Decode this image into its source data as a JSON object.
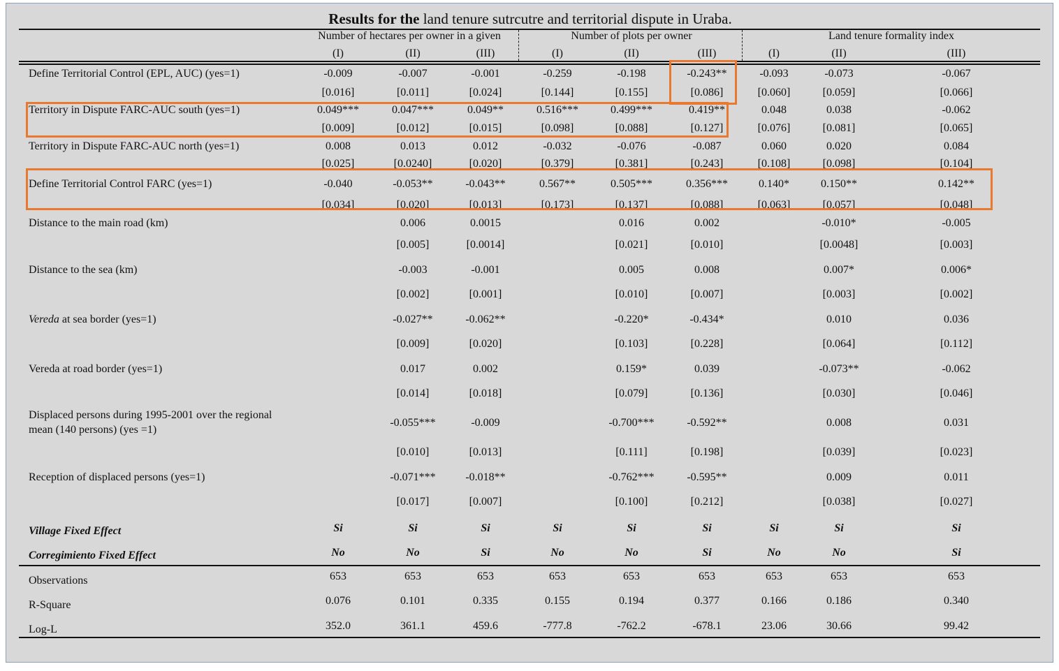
{
  "title": {
    "bold": "Results for the",
    "rest": " land tenure sutrcutre and territorial dispute in Uraba."
  },
  "groups": [
    {
      "label": "Number of hectares per owner in a given"
    },
    {
      "label": "Number of plots per owner"
    },
    {
      "label": "Land tenure formality index"
    }
  ],
  "columns": [
    "(I)",
    "(II)",
    "(III)",
    "(I)",
    "(II)",
    "(III)",
    "(I)",
    "(II)",
    "(III)"
  ],
  "rows": [
    {
      "label": "Define Territorial Control (EPL, AUC) (yes=1)",
      "coef": [
        "-0.009",
        "-0.007",
        "-0.001",
        "-0.259",
        "-0.198",
        "-0.243**",
        "-0.093",
        "-0.073",
        "-0.067"
      ],
      "se": [
        "[0.016]",
        "[0.011]",
        "[0.024]",
        "[0.144]",
        "[0.155]",
        "[0.086]",
        "[0.060]",
        "[0.059]",
        "[0.066]"
      ]
    },
    {
      "label": "Territory in Dispute FARC-AUC south (yes=1)",
      "coef": [
        "0.049***",
        "0.047***",
        "0.049**",
        "0.516***",
        "0.499***",
        "0.419**",
        "0.048",
        "0.038",
        "-0.062"
      ],
      "se": [
        "[0.009]",
        "[0.012]",
        "[0.015]",
        "[0.098]",
        "[0.088]",
        "[0.127]",
        "[0.076]",
        "[0.081]",
        "[0.065]"
      ]
    },
    {
      "label": "Territory in Dispute FARC-AUC north (yes=1)",
      "coef": [
        "0.008",
        "0.013",
        "0.012",
        "-0.032",
        "-0.076",
        "-0.087",
        "0.060",
        "0.020",
        "0.084"
      ],
      "se": [
        "[0.025]",
        "[0.0240]",
        "[0.020]",
        "[0.379]",
        "[0.381]",
        "[0.243]",
        "[0.108]",
        "[0.098]",
        "[0.104]"
      ]
    },
    {
      "label": "Define Territorial Control FARC (yes=1)",
      "coef": [
        "-0.040",
        "-0.053**",
        "-0.043**",
        "0.567**",
        "0.505***",
        "0.356***",
        "0.140*",
        "0.150**",
        "0.142**"
      ],
      "se": [
        "[0.034]",
        "[0.020]",
        "[0.013]",
        "[0.173]",
        "[0.137]",
        "[0.088]",
        "[0.063]",
        "[0.057]",
        "[0.048]"
      ]
    },
    {
      "label": "Distance to the main road (km)",
      "coef": [
        "",
        "0.006",
        "0.0015",
        "",
        "0.016",
        "0.002",
        "",
        "-0.010*",
        "-0.005"
      ],
      "se": [
        "",
        "[0.005]",
        "[0.0014]",
        "",
        "[0.021]",
        "[0.010]",
        "",
        "[0.0048]",
        "[0.003]"
      ]
    },
    {
      "label": "Distance to the sea (km)",
      "coef": [
        "",
        "-0.003",
        "-0.001",
        "",
        "0.005",
        "0.008",
        "",
        "0.007*",
        "0.006*"
      ],
      "se": [
        "",
        "[0.002]",
        "[0.001]",
        "",
        "[0.010]",
        "[0.007]",
        "",
        "[0.003]",
        "[0.002]"
      ]
    },
    {
      "label_italic": "Vereda",
      "label": " at sea border (yes=1)",
      "coef": [
        "",
        "-0.027**",
        "-0.062**",
        "",
        "-0.220*",
        "-0.434*",
        "",
        "0.010",
        "0.036"
      ],
      "se": [
        "",
        "[0.009]",
        "[0.020]",
        "",
        "[0.103]",
        "[0.228]",
        "",
        "[0.064]",
        "[0.112]"
      ]
    },
    {
      "label": "Vereda at road border (yes=1)",
      "coef": [
        "",
        "0.017",
        "0.002",
        "",
        "0.159*",
        "0.039",
        "",
        "-0.073**",
        "-0.062"
      ],
      "se": [
        "",
        "[0.014]",
        "[0.018]",
        "",
        "[0.079]",
        "[0.136]",
        "",
        "[0.030]",
        "[0.046]"
      ]
    },
    {
      "label": "Displaced persons during 1995-2001 over the regional",
      "label2": "mean (140 persons) (yes =1)",
      "coef": [
        "",
        "-0.055***",
        "-0.009",
        "",
        "-0.700***",
        "-0.592**",
        "",
        "0.008",
        "0.031"
      ],
      "se": [
        "",
        "[0.010]",
        "[0.013]",
        "",
        "[0.111]",
        "[0.198]",
        "",
        "[0.039]",
        "[0.023]"
      ]
    },
    {
      "label": "Reception of displaced persons (yes=1)",
      "coef": [
        "",
        "-0.071***",
        "-0.018**",
        "",
        "-0.762***",
        "-0.595**",
        "",
        "0.009",
        "0.011"
      ],
      "se": [
        "",
        "[0.017]",
        "[0.007]",
        "",
        "[0.100]",
        "[0.212]",
        "",
        "[0.038]",
        "[0.027]"
      ]
    }
  ],
  "fixed_effects": [
    {
      "label": "Village Fixed Effect",
      "values": [
        "Si",
        "Si",
        "Si",
        "Si",
        "Si",
        "Si",
        "Si",
        "Si",
        "Si"
      ]
    },
    {
      "label": "Corregimiento Fixed Effect",
      "values": [
        "No",
        "No",
        "Si",
        "No",
        "No",
        "Si",
        "No",
        "No",
        "Si"
      ]
    }
  ],
  "stats": [
    {
      "label": "Observations",
      "values": [
        "653",
        "653",
        "653",
        "653",
        "653",
        "653",
        "653",
        "653",
        "653"
      ]
    },
    {
      "label": "R-Square",
      "values": [
        "0.076",
        "0.101",
        "0.335",
        "0.155",
        "0.194",
        "0.377",
        "0.166",
        "0.186",
        "0.340"
      ]
    },
    {
      "label": "Log-L",
      "values": [
        "352.0",
        "361.1",
        "459.6",
        "-777.8",
        "-762.2",
        "-678.1",
        "23.06",
        "30.66",
        "99.42"
      ]
    }
  ],
  "highlight_color": "#e8792e"
}
